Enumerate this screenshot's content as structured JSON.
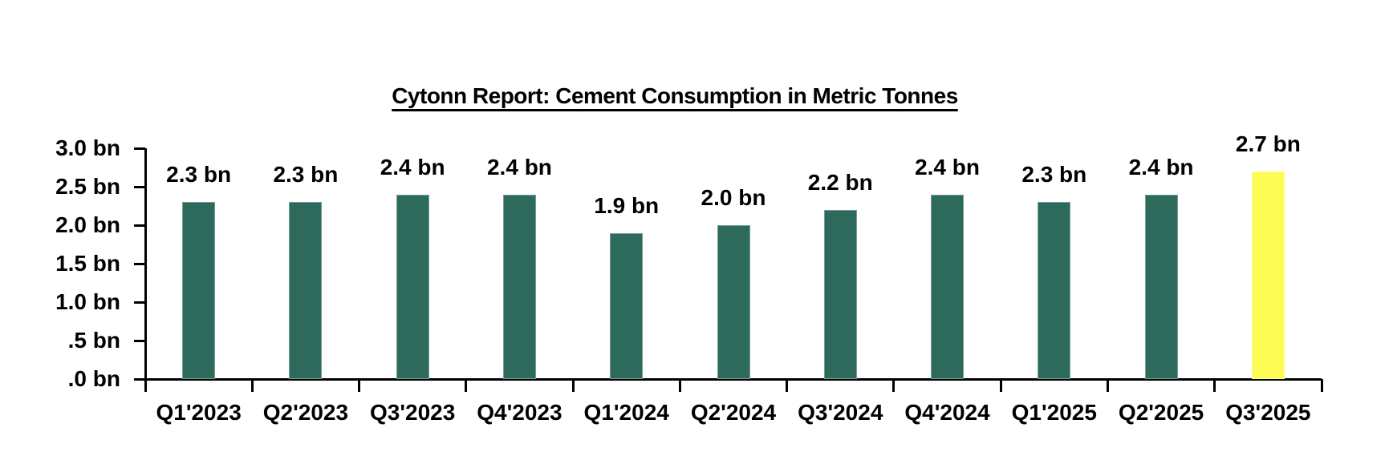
{
  "chart_data": {
    "type": "bar",
    "title": "Cytonn Report: Cement Consumption in Metric Tonnes",
    "categories": [
      "Q1'2023",
      "Q2'2023",
      "Q3'2023",
      "Q4'2023",
      "Q1'2024",
      "Q2'2024",
      "Q3'2024",
      "Q4'2024",
      "Q1'2025",
      "Q2'2025",
      "Q3'2025"
    ],
    "values": [
      2.3,
      2.3,
      2.4,
      2.4,
      1.9,
      2.0,
      2.2,
      2.4,
      2.3,
      2.4,
      2.7
    ],
    "data_labels": [
      "2.3 bn",
      "2.3 bn",
      "2.4 bn",
      "2.4 bn",
      "1.9 bn",
      "2.0 bn",
      "2.2 bn",
      "2.4 bn",
      "2.3 bn",
      "2.4 bn",
      "2.7 bn"
    ],
    "unit": "bn",
    "xlabel": "",
    "ylabel": "",
    "ylim": [
      0,
      3.0
    ],
    "y_tick_values": [
      3.0,
      2.5,
      2.0,
      1.5,
      1.0,
      0.5,
      0.0
    ],
    "y_tick_labels": [
      "3.0 bn",
      "2.5 bn",
      "2.0 bn",
      "1.5 bn",
      "1.0 bn",
      ".5 bn",
      ".0 bn"
    ],
    "grid": "off",
    "legend": "none",
    "highlight_index": 10,
    "colors": {
      "bar_default": "#2E6A5B",
      "bar_highlight": "#FDFC55",
      "axis": "#000000",
      "text": "#000000",
      "background": "#FFFFFF"
    }
  }
}
